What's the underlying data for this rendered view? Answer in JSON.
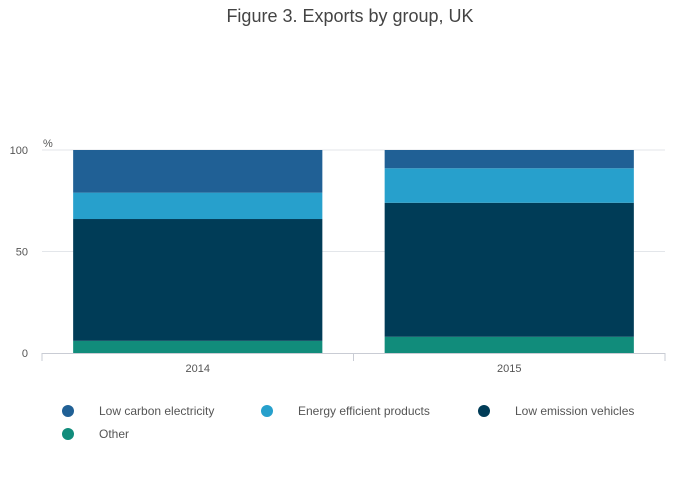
{
  "title": "Figure 3. Exports by group, UK",
  "chart_data": {
    "type": "bar",
    "stacked": true,
    "title": "Figure 3. Exports by group, UK",
    "ylabel": "%",
    "xlabel": "",
    "ylim": [
      0,
      100
    ],
    "yticks": [
      0,
      50,
      100
    ],
    "categories": [
      "2014",
      "2015"
    ],
    "series": [
      {
        "name": "Other",
        "color": "#118c7b",
        "values": [
          6,
          8
        ]
      },
      {
        "name": "Low emission vehicles",
        "color": "#003c57",
        "values": [
          60,
          66
        ]
      },
      {
        "name": "Energy efficient products",
        "color": "#27a0cc",
        "values": [
          13,
          17
        ]
      },
      {
        "name": "Low carbon electricity",
        "color": "#206095",
        "values": [
          21,
          9
        ]
      }
    ],
    "legend_order": [
      "Low carbon electricity",
      "Energy efficient products",
      "Low emission vehicles",
      "Other"
    ],
    "grid": true,
    "legend_position": "bottom"
  }
}
